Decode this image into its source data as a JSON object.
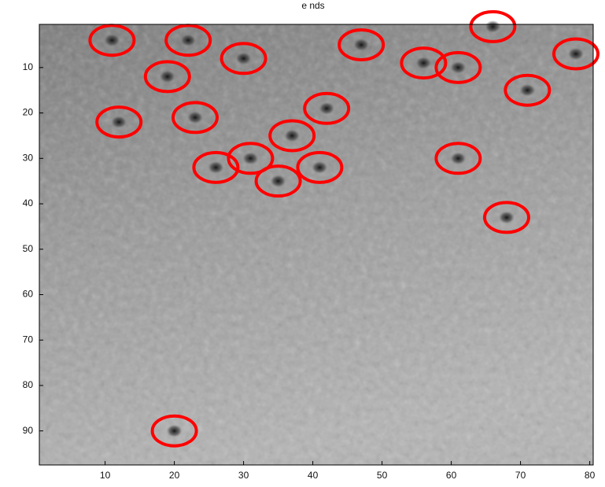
{
  "chart_data": {
    "type": "scatter",
    "title": "e nds",
    "x": [
      11,
      22,
      30,
      19,
      12,
      23,
      47,
      56,
      61,
      66,
      78,
      71,
      42,
      37,
      26,
      31,
      35,
      41,
      61,
      68,
      20
    ],
    "y": [
      4,
      4,
      8,
      12,
      22,
      21,
      5,
      9,
      10,
      1,
      7,
      15,
      19,
      25,
      32,
      30,
      35,
      32,
      30,
      43,
      90
    ],
    "color": "#ff0000",
    "xlim": [
      0.5,
      80.5
    ],
    "ylim": [
      97.5,
      0.5
    ],
    "xticks": [
      10,
      20,
      30,
      40,
      50,
      60,
      70,
      80
    ],
    "yticks": [
      10,
      20,
      30,
      40,
      50,
      60,
      70,
      80,
      90
    ]
  }
}
